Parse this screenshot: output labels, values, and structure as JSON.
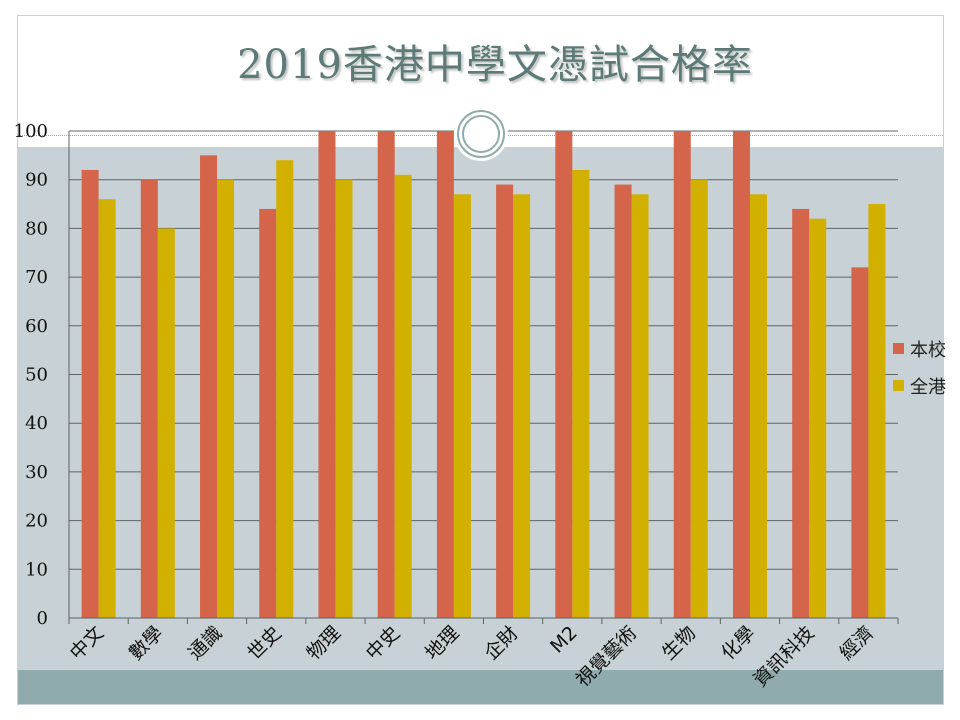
{
  "title": "2019香港中學文憑試合格率",
  "colors": {
    "school": "#d4644a",
    "hk": "#d1b000"
  },
  "chart_data": {
    "type": "bar",
    "title": "2019香港中學文憑試合格率",
    "categories": [
      "中文",
      "數學",
      "通識",
      "世史",
      "物理",
      "中史",
      "地理",
      "企財",
      "M2",
      "視覺藝術",
      "生物",
      "化學",
      "資訊科技",
      "經濟"
    ],
    "series": [
      {
        "name": "本校",
        "values": [
          92,
          90,
          95,
          84,
          100,
          100,
          100,
          89,
          100,
          89,
          100,
          100,
          84,
          72
        ]
      },
      {
        "name": "全港",
        "values": [
          86,
          80,
          90,
          94,
          90,
          91,
          87,
          87,
          92,
          87,
          90,
          87,
          82,
          85
        ]
      }
    ],
    "yticks": [
      "0",
      "10",
      "20",
      "30",
      "40",
      "50",
      "60",
      "70",
      "80",
      "90",
      "100"
    ],
    "ylim": [
      0,
      100
    ],
    "grid": true,
    "legend": "right"
  }
}
